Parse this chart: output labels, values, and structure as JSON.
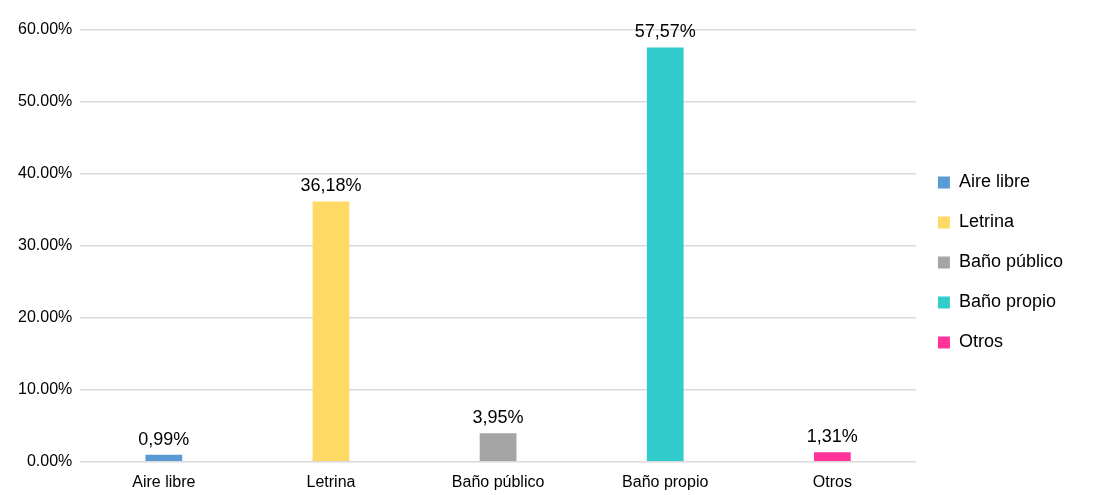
{
  "chart_data": {
    "type": "bar",
    "categories": [
      "Aire libre",
      "Letrina",
      "Baño público",
      "Baño propio",
      "Otros"
    ],
    "series": [
      {
        "name": "Aire libre",
        "color": "#5b9bd5",
        "values": [
          0.99,
          null,
          null,
          null,
          null
        ],
        "value_labels": [
          "0,99%",
          null,
          null,
          null,
          null
        ]
      },
      {
        "name": "Letrina",
        "color": "#ffd966",
        "values": [
          null,
          36.18,
          null,
          null,
          null
        ],
        "value_labels": [
          null,
          "36,18%",
          null,
          null,
          null
        ]
      },
      {
        "name": "Baño público",
        "color": "#a5a5a5",
        "values": [
          null,
          null,
          3.95,
          null,
          null
        ],
        "value_labels": [
          null,
          null,
          "3,95%",
          null,
          null
        ]
      },
      {
        "name": "Baño propio",
        "color": "#33cccc",
        "values": [
          null,
          null,
          null,
          57.57,
          null
        ],
        "value_labels": [
          null,
          null,
          null,
          "57,57%",
          null
        ]
      },
      {
        "name": "Otros",
        "color": "#ff3399",
        "values": [
          null,
          null,
          null,
          null,
          1.31
        ],
        "value_labels": [
          null,
          null,
          null,
          null,
          "1,31%"
        ]
      }
    ],
    "ylim": [
      0,
      60
    ],
    "yticks": [
      {
        "value": 0,
        "label": "0.00%"
      },
      {
        "value": 10,
        "label": "10.00%"
      },
      {
        "value": 20,
        "label": "20.00%"
      },
      {
        "value": 30,
        "label": "30.00%"
      },
      {
        "value": 40,
        "label": "40.00%"
      },
      {
        "value": 50,
        "label": "50.00%"
      },
      {
        "value": 60,
        "label": "60.00%"
      }
    ],
    "grid": "y",
    "legend": "right"
  }
}
